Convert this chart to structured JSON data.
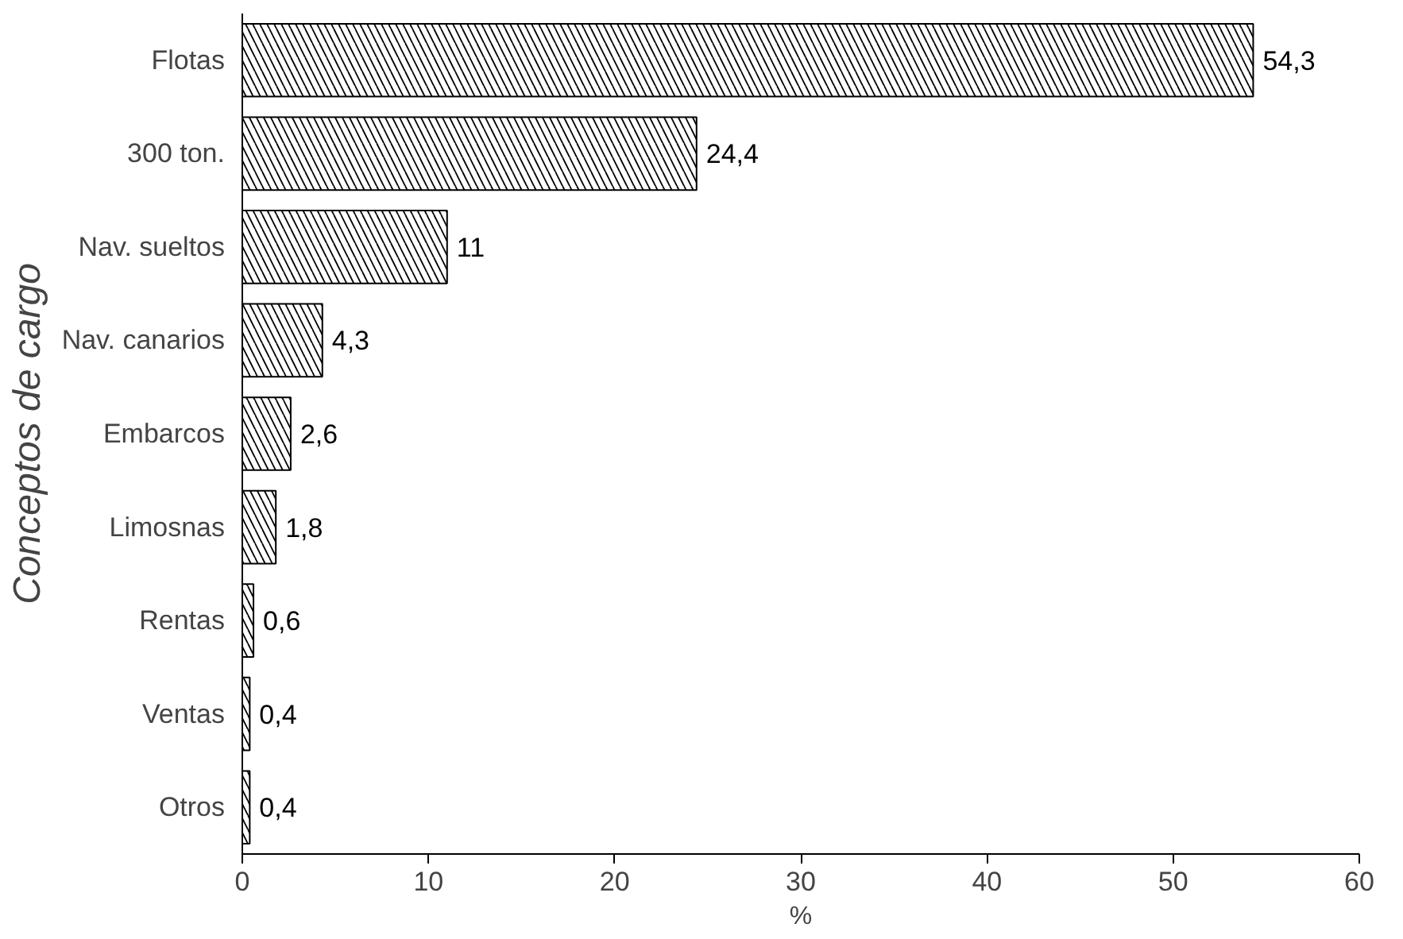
{
  "chart_data": {
    "type": "bar",
    "orientation": "horizontal",
    "xlabel": "%",
    "ylabel": "Conceptos de cargo",
    "categories": [
      "Flotas",
      "300 ton.",
      "Nav. sueltos",
      "Nav. canarios",
      "Embarcos",
      "Limosnas",
      "Rentas",
      "Ventas",
      "Otros"
    ],
    "values": [
      54.3,
      24.4,
      11,
      4.3,
      2.6,
      1.8,
      0.6,
      0.4,
      0.4
    ],
    "value_labels": [
      "54,3",
      "24,4",
      "11",
      "4,3",
      "2,6",
      "1,8",
      "0,6",
      "0,4",
      "0,4"
    ],
    "color": "#000000",
    "xlim": [
      0,
      60
    ],
    "xticks": [
      0,
      10,
      20,
      30,
      40,
      50,
      60
    ],
    "grid": false
  }
}
